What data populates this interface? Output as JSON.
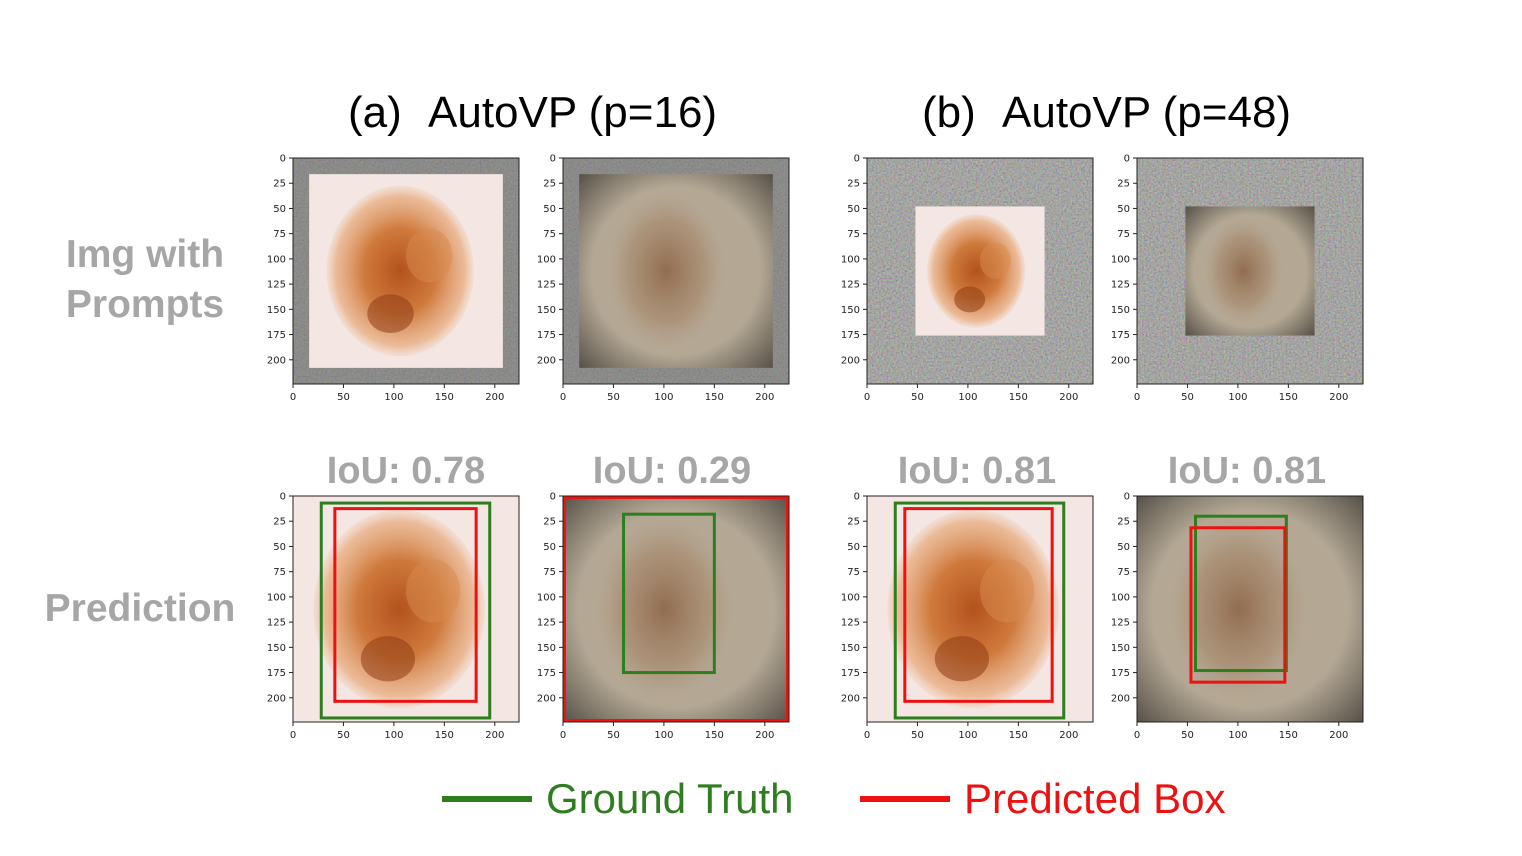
{
  "columns": [
    {
      "label": "(a)",
      "title": "AutoVP (p=16)"
    },
    {
      "label": "(b)",
      "title": "AutoVP (p=48)"
    }
  ],
  "row_labels": {
    "prompts": "Img with\nPrompts",
    "prediction": "Prediction"
  },
  "axis": {
    "y_ticks": [
      "0",
      "25",
      "50",
      "75",
      "100",
      "125",
      "150",
      "175",
      "200"
    ],
    "x_ticks": [
      "0",
      "50",
      "100",
      "150",
      "200"
    ],
    "range": [
      0,
      224
    ]
  },
  "prompt_panels": [
    {
      "image": "lesion-light",
      "pad": 16
    },
    {
      "image": "lesion-dark",
      "pad": 16
    },
    {
      "image": "lesion-light",
      "pad": 48
    },
    {
      "image": "lesion-dark",
      "pad": 48
    }
  ],
  "prediction_panels": [
    {
      "iou_label": "IoU: 0.78",
      "image": "lesion-light",
      "gt_box": [
        28,
        7,
        195,
        220
      ],
      "pred_box": [
        40,
        11,
        183,
        205
      ]
    },
    {
      "iou_label": "IoU: 0.29",
      "image": "lesion-dark",
      "gt_box": [
        60,
        18,
        150,
        175
      ],
      "pred_box": [
        0,
        0,
        224,
        224
      ]
    },
    {
      "iou_label": "IoU: 0.81",
      "image": "lesion-light",
      "gt_box": [
        28,
        7,
        195,
        220
      ],
      "pred_box": [
        36,
        11,
        185,
        205
      ]
    },
    {
      "iou_label": "IoU: 0.81",
      "image": "lesion-dark",
      "gt_box": [
        58,
        20,
        148,
        173
      ],
      "pred_box": [
        52,
        30,
        148,
        186
      ]
    }
  ],
  "legend": [
    {
      "label": "Ground Truth",
      "color": "#2e7d1f"
    },
    {
      "label": "Predicted Box",
      "color": "#ee1111"
    }
  ],
  "colors": {
    "ground_truth": "#2e7d1f",
    "predicted": "#ee1111",
    "row_label": "#a6a6a6"
  }
}
